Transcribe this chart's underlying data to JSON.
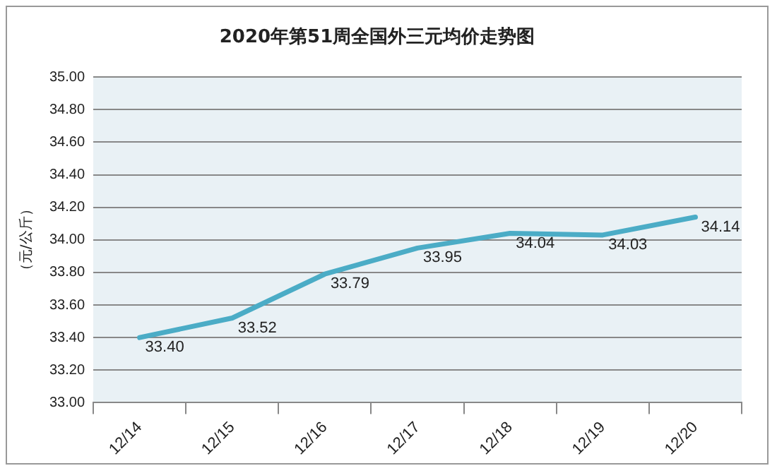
{
  "chart_data": {
    "type": "line",
    "title": "2020年第51周全国外三元均价走势图",
    "ylabel": "（元/公斤）",
    "categories": [
      "12/14",
      "12/15",
      "12/16",
      "12/17",
      "12/18",
      "12/19",
      "12/20"
    ],
    "series": [
      {
        "color": "#4bacc6",
        "values": [
          33.4,
          33.52,
          33.79,
          33.95,
          34.04,
          34.03,
          34.14
        ],
        "value_labels": [
          "33.40",
          "33.52",
          "33.79",
          "33.95",
          "34.04",
          "34.03",
          "34.14"
        ]
      }
    ],
    "ylim": [
      33.0,
      35.0
    ],
    "yticks": [
      {
        "value": 33,
        "label": "33.00"
      },
      {
        "value": 33.2,
        "label": "33.20"
      },
      {
        "value": 33.4,
        "label": "33.40"
      },
      {
        "value": 33.6,
        "label": "33.60"
      },
      {
        "value": 33.8,
        "label": "33.80"
      },
      {
        "value": 34,
        "label": "34.00"
      },
      {
        "value": 34.2,
        "label": "34.20"
      },
      {
        "value": 34.4,
        "label": "34.40"
      },
      {
        "value": 34.6,
        "label": "34.60"
      },
      {
        "value": 34.8,
        "label": "34.80"
      },
      {
        "value": 35,
        "label": "35.00"
      }
    ],
    "grid": "y",
    "legend": false,
    "marker": "none",
    "line_style": "solid"
  }
}
